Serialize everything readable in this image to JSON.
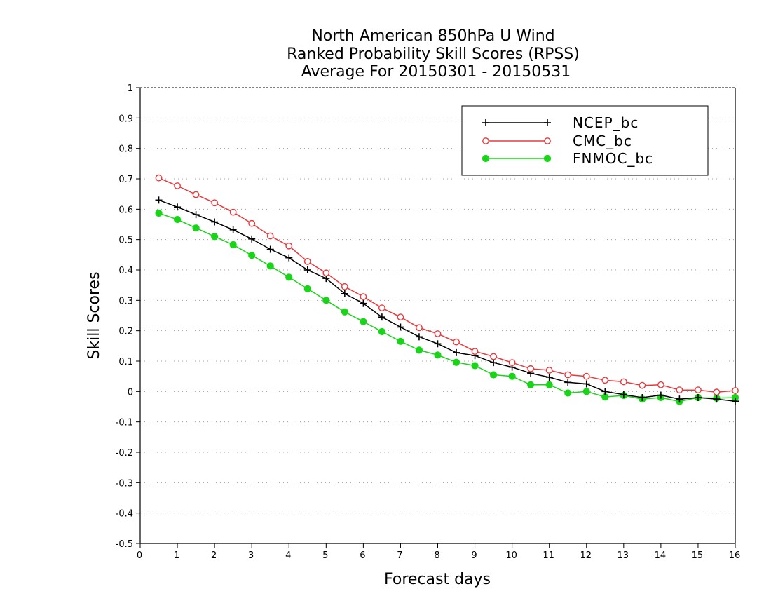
{
  "chart_data": {
    "type": "line",
    "title_lines": [
      "North American 850hPa U Wind",
      "Ranked Probability Skill Scores (RPSS)",
      "Average For 20150301 - 20150531"
    ],
    "xlabel": "Forecast days",
    "ylabel": "Skill Scores",
    "xlim": [
      0,
      16
    ],
    "ylim": [
      -0.5,
      1
    ],
    "x_ticks": [
      "0",
      "1",
      "2",
      "3",
      "4",
      "5",
      "6",
      "7",
      "8",
      "9",
      "10",
      "11",
      "12",
      "13",
      "14",
      "15",
      "16"
    ],
    "y_ticks": [
      "-0.5",
      "-0.4",
      "-0.3",
      "-0.2",
      "-0.1",
      "0",
      "0.1",
      "0.2",
      "0.3",
      "0.4",
      "0.5",
      "0.6",
      "0.7",
      "0.8",
      "0.9",
      "1"
    ],
    "grid": "horizontal dotted",
    "legend_position": "top-right",
    "x": [
      0.5,
      1,
      1.5,
      2,
      2.5,
      3,
      3.5,
      4,
      4.5,
      5,
      5.5,
      6,
      6.5,
      7,
      7.5,
      8,
      8.5,
      9,
      9.5,
      10,
      10.5,
      11,
      11.5,
      12,
      12.5,
      13,
      13.5,
      14,
      14.5,
      15,
      15.5,
      16
    ],
    "series": [
      {
        "name": "NCEP_bc",
        "color": "#000000",
        "marker": "plus",
        "values": [
          0.63,
          0.607,
          0.582,
          0.558,
          0.532,
          0.502,
          0.468,
          0.44,
          0.4,
          0.372,
          0.322,
          0.29,
          0.245,
          0.212,
          0.18,
          0.157,
          0.128,
          0.118,
          0.095,
          0.08,
          0.06,
          0.047,
          0.03,
          0.025,
          0.0,
          -0.01,
          -0.02,
          -0.012,
          -0.025,
          -0.02,
          -0.025,
          -0.032
        ]
      },
      {
        "name": "CMC_bc",
        "color": "#e8383c",
        "marker": "open-circle",
        "values": [
          0.703,
          0.677,
          0.648,
          0.621,
          0.59,
          0.553,
          0.512,
          0.479,
          0.428,
          0.39,
          0.345,
          0.312,
          0.275,
          0.245,
          0.21,
          0.19,
          0.163,
          0.132,
          0.115,
          0.095,
          0.075,
          0.07,
          0.055,
          0.05,
          0.037,
          0.032,
          0.02,
          0.022,
          0.005,
          0.005,
          -0.002,
          0.003
        ]
      },
      {
        "name": "FNMOC_bc",
        "color": "#1ad41a",
        "marker": "filled-circle",
        "values": [
          0.587,
          0.566,
          0.538,
          0.51,
          0.483,
          0.448,
          0.413,
          0.376,
          0.338,
          0.3,
          0.262,
          0.23,
          0.197,
          0.165,
          0.136,
          0.12,
          0.096,
          0.085,
          0.055,
          0.05,
          0.022,
          0.022,
          -0.005,
          0.0,
          -0.018,
          -0.013,
          -0.025,
          -0.02,
          -0.033,
          -0.02,
          -0.022,
          -0.02
        ]
      }
    ]
  }
}
